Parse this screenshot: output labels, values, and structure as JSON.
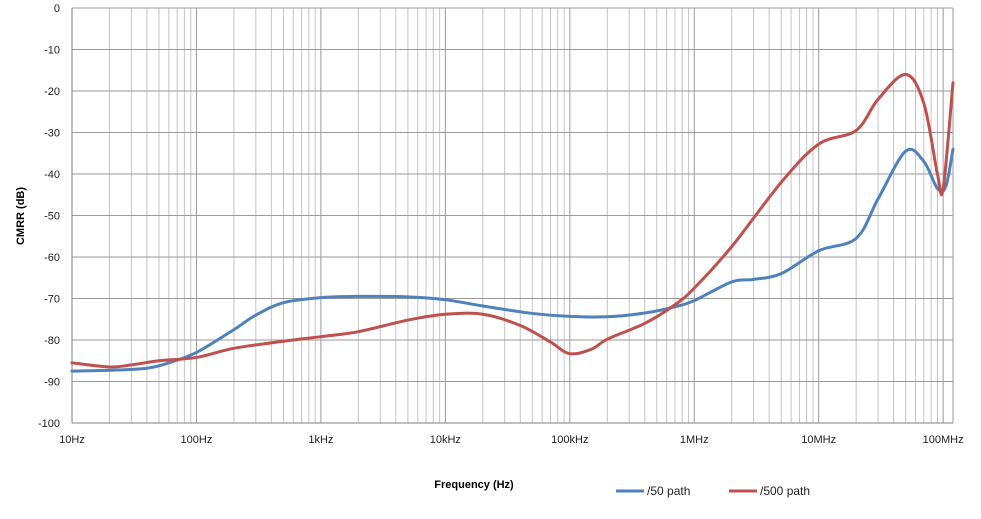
{
  "chart_data": {
    "type": "line",
    "title": "",
    "xlabel": "Frequency (Hz)",
    "ylabel": "CMRR (dB)",
    "xscale": "log",
    "xlim": [
      10,
      120000000
    ],
    "ylim": [
      -100,
      0
    ],
    "grid": true,
    "legend": "bottom-right",
    "x_ticks": [
      {
        "value": 10,
        "label": "10Hz"
      },
      {
        "value": 100,
        "label": "100Hz"
      },
      {
        "value": 1000,
        "label": "1kHz"
      },
      {
        "value": 10000,
        "label": "10kHz"
      },
      {
        "value": 100000,
        "label": "100kHz"
      },
      {
        "value": 1000000,
        "label": "1MHz"
      },
      {
        "value": 10000000,
        "label": "10MHz"
      },
      {
        "value": 100000000,
        "label": "100MHz"
      }
    ],
    "y_ticks": [
      0,
      -10,
      -20,
      -30,
      -40,
      -50,
      -60,
      -70,
      -80,
      -90,
      -100
    ],
    "series": [
      {
        "name": "/50 path",
        "color": "#4f81bd",
        "points": [
          [
            10,
            -87.5
          ],
          [
            20,
            -87.3
          ],
          [
            40,
            -86.8
          ],
          [
            60,
            -85.5
          ],
          [
            100,
            -83
          ],
          [
            200,
            -77.5
          ],
          [
            300,
            -74
          ],
          [
            500,
            -71
          ],
          [
            1000,
            -69.8
          ],
          [
            2000,
            -69.5
          ],
          [
            5000,
            -69.6
          ],
          [
            10000,
            -70.3
          ],
          [
            20000,
            -71.8
          ],
          [
            50000,
            -73.6
          ],
          [
            100000,
            -74.3
          ],
          [
            200000,
            -74.4
          ],
          [
            400000,
            -73.5
          ],
          [
            700000,
            -72
          ],
          [
            1000000,
            -70.5
          ],
          [
            2000000,
            -66
          ],
          [
            3000000,
            -65.4
          ],
          [
            5000000,
            -64
          ],
          [
            10000000,
            -58.5
          ],
          [
            20000000,
            -55.5
          ],
          [
            30000000,
            -46
          ],
          [
            50000000,
            -34.5
          ],
          [
            70000000,
            -37
          ],
          [
            90000000,
            -43.5
          ],
          [
            105000000,
            -43
          ],
          [
            120000000,
            -34
          ]
        ]
      },
      {
        "name": "/500 path",
        "color": "#c0504d",
        "points": [
          [
            10,
            -85.5
          ],
          [
            20,
            -86.5
          ],
          [
            30,
            -86
          ],
          [
            50,
            -85
          ],
          [
            100,
            -84.2
          ],
          [
            200,
            -82
          ],
          [
            500,
            -80.3
          ],
          [
            1000,
            -79.2
          ],
          [
            2000,
            -78
          ],
          [
            5000,
            -75.2
          ],
          [
            10000,
            -73.8
          ],
          [
            20000,
            -73.8
          ],
          [
            40000,
            -76.5
          ],
          [
            70000,
            -80.5
          ],
          [
            100000,
            -83.3
          ],
          [
            150000,
            -82.2
          ],
          [
            200000,
            -79.8
          ],
          [
            400000,
            -76
          ],
          [
            700000,
            -71.5
          ],
          [
            1000000,
            -67.5
          ],
          [
            2000000,
            -57.5
          ],
          [
            5000000,
            -42
          ],
          [
            10000000,
            -32.8
          ],
          [
            20000000,
            -29.5
          ],
          [
            30000000,
            -22
          ],
          [
            50000000,
            -16
          ],
          [
            70000000,
            -23
          ],
          [
            90000000,
            -40
          ],
          [
            100000000,
            -43.5
          ],
          [
            120000000,
            -18
          ]
        ]
      }
    ]
  }
}
